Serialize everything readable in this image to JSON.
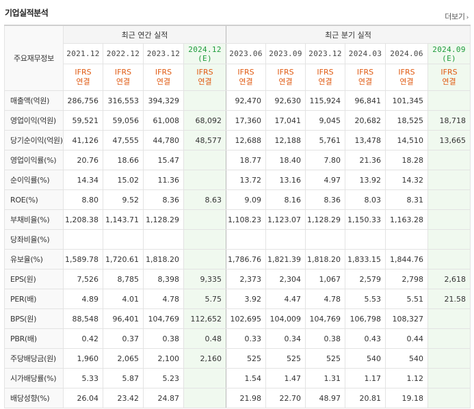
{
  "section": {
    "title": "기업실적분석",
    "more_label": "더보기"
  },
  "table": {
    "row_header_label": "주요재무정보",
    "annual_caption": "최근 연간 실적",
    "quarter_caption": "최근 분기 실적",
    "annual_periods": [
      "2021.12",
      "2022.12",
      "2023.12",
      "2024.12"
    ],
    "annual_est_mark": "(E)",
    "quarter_periods": [
      "2023.06",
      "2023.09",
      "2023.12",
      "2024.03",
      "2024.06",
      "2024.09"
    ],
    "quarter_est_mark": "(E)",
    "ifrs_line1": "IFRS",
    "ifrs_line2": "연결",
    "rows": [
      {
        "label": "매출액(억원)",
        "values": [
          "286,756",
          "316,553",
          "394,329",
          "",
          "92,470",
          "92,630",
          "115,924",
          "96,841",
          "101,345",
          ""
        ]
      },
      {
        "label": "영업이익(억원)",
        "values": [
          "59,521",
          "59,056",
          "61,008",
          "68,092",
          "17,360",
          "17,041",
          "9,045",
          "20,682",
          "18,525",
          "18,718"
        ]
      },
      {
        "label": "당기순이익(억원)",
        "values": [
          "41,126",
          "47,555",
          "44,780",
          "48,577",
          "12,688",
          "12,188",
          "5,761",
          "13,478",
          "14,510",
          "13,665"
        ]
      },
      {
        "label": "영업이익률(%)",
        "values": [
          "20.76",
          "18.66",
          "15.47",
          "",
          "18.77",
          "18.40",
          "7.80",
          "21.36",
          "18.28",
          ""
        ]
      },
      {
        "label": "순이익률(%)",
        "values": [
          "14.34",
          "15.02",
          "11.36",
          "",
          "13.72",
          "13.16",
          "4.97",
          "13.92",
          "14.32",
          ""
        ]
      },
      {
        "label": "ROE(%)",
        "values": [
          "8.80",
          "9.52",
          "8.36",
          "8.63",
          "9.09",
          "8.16",
          "8.36",
          "8.03",
          "8.31",
          ""
        ]
      },
      {
        "label": "부채비율(%)",
        "values": [
          "1,208.38",
          "1,143.71",
          "1,128.29",
          "",
          "1,108.23",
          "1,123.07",
          "1,128.29",
          "1,150.33",
          "1,163.28",
          ""
        ]
      },
      {
        "label": "당좌비율(%)",
        "values": [
          "",
          "",
          "",
          "",
          "",
          "",
          "",
          "",
          "",
          ""
        ]
      },
      {
        "label": "유보율(%)",
        "values": [
          "1,589.78",
          "1,720.61",
          "1,818.20",
          "",
          "1,786.76",
          "1,821.39",
          "1,818.20",
          "1,833.15",
          "1,844.76",
          ""
        ]
      },
      {
        "label": "EPS(원)",
        "values": [
          "7,526",
          "8,785",
          "8,398",
          "9,335",
          "2,373",
          "2,304",
          "1,067",
          "2,579",
          "2,798",
          "2,618"
        ]
      },
      {
        "label": "PER(배)",
        "values": [
          "4.89",
          "4.01",
          "4.78",
          "5.75",
          "3.92",
          "4.47",
          "4.78",
          "5.53",
          "5.51",
          "21.58"
        ]
      },
      {
        "label": "BPS(원)",
        "values": [
          "88,548",
          "96,401",
          "104,769",
          "112,652",
          "102,695",
          "104,009",
          "104,769",
          "106,798",
          "108,327",
          ""
        ]
      },
      {
        "label": "PBR(배)",
        "values": [
          "0.42",
          "0.37",
          "0.38",
          "0.48",
          "0.33",
          "0.34",
          "0.38",
          "0.43",
          "0.44",
          ""
        ]
      },
      {
        "label": "주당배당금(원)",
        "values": [
          "1,960",
          "2,065",
          "2,100",
          "2,160",
          "525",
          "525",
          "525",
          "540",
          "540",
          ""
        ]
      },
      {
        "label": "시가배당률(%)",
        "values": [
          "5.33",
          "5.87",
          "5.23",
          "",
          "1.54",
          "1.47",
          "1.31",
          "1.17",
          "1.12",
          ""
        ]
      },
      {
        "label": "배당성향(%)",
        "values": [
          "26.04",
          "23.42",
          "24.87",
          "",
          "21.98",
          "22.70",
          "48.97",
          "20.81",
          "19.18",
          ""
        ]
      }
    ]
  }
}
